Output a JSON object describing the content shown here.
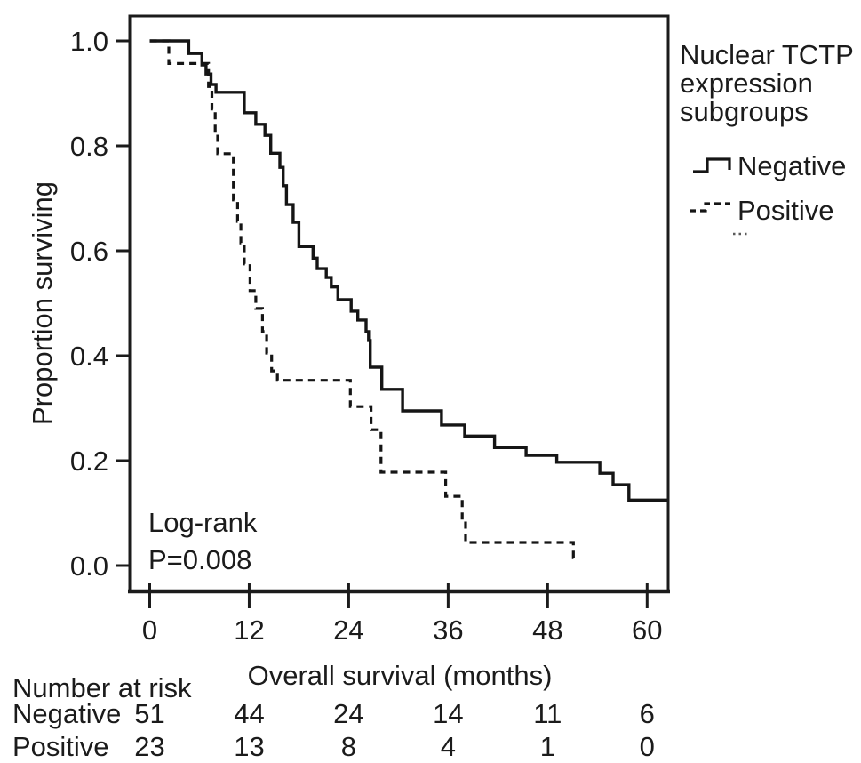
{
  "chart_data": {
    "type": "line",
    "subtype": "kaplan-meier-step-curves",
    "title": "",
    "xlabel": "Overall survival (months)",
    "ylabel": "Proportion surviving",
    "xlim": [
      -2.4,
      62.5
    ],
    "ylim": [
      -0.05,
      1.05
    ],
    "x_ticks": [
      0,
      12,
      24,
      36,
      48,
      60
    ],
    "y_ticks": [
      1.0,
      0.8,
      0.6,
      0.4,
      0.2,
      0.0
    ],
    "grid": false,
    "curve_color": "#151515",
    "legend": {
      "position": "right-top-outside",
      "title_lines": [
        "Nuclear TCTP",
        "expression",
        "subgroups"
      ],
      "items": [
        {
          "label": "Negative",
          "line_style": "solid"
        },
        {
          "label": "Positive",
          "line_style": "dashed"
        }
      ],
      "extra_mark": "small-dotted-fragment"
    },
    "annotation": {
      "lines": [
        "Log-rank",
        "P=0.008"
      ]
    },
    "series": [
      {
        "name": "Negative",
        "line_style": "solid",
        "steps": [
          [
            0,
            1.0
          ],
          [
            4.7,
            0.976
          ],
          [
            6.3,
            0.954
          ],
          [
            6.8,
            0.937
          ],
          [
            7.4,
            0.917
          ],
          [
            8.0,
            0.902
          ],
          [
            11.4,
            0.863
          ],
          [
            12.8,
            0.841
          ],
          [
            13.9,
            0.82
          ],
          [
            14.6,
            0.786
          ],
          [
            15.7,
            0.759
          ],
          [
            16.1,
            0.724
          ],
          [
            16.5,
            0.688
          ],
          [
            17.3,
            0.654
          ],
          [
            18.0,
            0.608
          ],
          [
            19.7,
            0.586
          ],
          [
            20.2,
            0.566
          ],
          [
            21.3,
            0.549
          ],
          [
            21.9,
            0.531
          ],
          [
            22.7,
            0.507
          ],
          [
            24.3,
            0.485
          ],
          [
            25.1,
            0.468
          ],
          [
            26.1,
            0.446
          ],
          [
            26.4,
            0.429
          ],
          [
            26.6,
            0.378
          ],
          [
            28.0,
            0.336
          ],
          [
            30.5,
            0.295
          ],
          [
            35.2,
            0.268
          ],
          [
            38.0,
            0.247
          ],
          [
            41.6,
            0.225
          ],
          [
            45.4,
            0.21
          ],
          [
            49.1,
            0.197
          ],
          [
            54.3,
            0.176
          ],
          [
            55.9,
            0.154
          ],
          [
            57.8,
            0.125
          ]
        ],
        "end_x": 62.4
      },
      {
        "name": "Positive",
        "line_style": "dashed",
        "steps": [
          [
            0,
            1.0
          ],
          [
            2.3,
            0.957
          ],
          [
            7.1,
            0.913
          ],
          [
            7.5,
            0.87
          ],
          [
            7.9,
            0.826
          ],
          [
            8.2,
            0.785
          ],
          [
            10.1,
            0.697
          ],
          [
            10.6,
            0.656
          ],
          [
            11.0,
            0.615
          ],
          [
            11.4,
            0.575
          ],
          [
            12.1,
            0.524
          ],
          [
            12.8,
            0.49
          ],
          [
            13.6,
            0.446
          ],
          [
            14.1,
            0.405
          ],
          [
            14.7,
            0.371
          ],
          [
            15.4,
            0.353
          ],
          [
            24.2,
            0.303
          ],
          [
            26.7,
            0.259
          ],
          [
            27.9,
            0.178
          ],
          [
            35.7,
            0.132
          ],
          [
            37.7,
            0.086
          ],
          [
            38.1,
            0.044
          ],
          [
            51.1,
            0.015
          ]
        ],
        "end_x": 51.4
      }
    ],
    "risk_table": {
      "title": "Number at risk",
      "time_points": [
        0,
        12,
        24,
        36,
        48,
        60
      ],
      "rows": [
        {
          "label": "Negative",
          "values": [
            51,
            44,
            24,
            14,
            11,
            6
          ]
        },
        {
          "label": "Positive",
          "values": [
            23,
            13,
            8,
            4,
            1,
            0
          ]
        }
      ]
    }
  }
}
